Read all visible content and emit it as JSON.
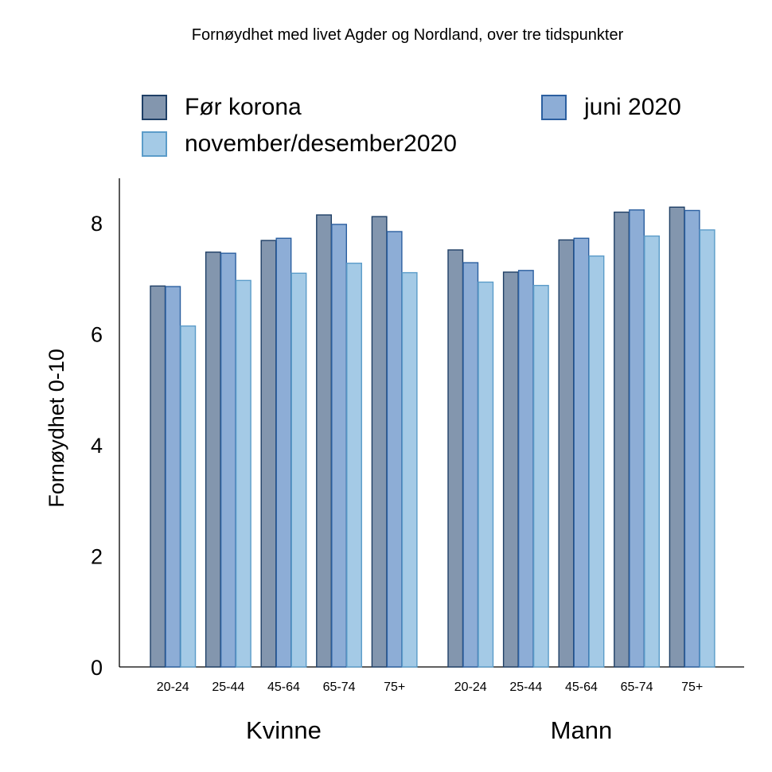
{
  "chart_data": {
    "type": "bar",
    "title": "Fornøydhet med livet Agder og Nordland, over tre tidspunkter",
    "ylabel": "Fornøydhet 0-10",
    "xlabel": "",
    "ylim": [
      0,
      8.8
    ],
    "yticks": [
      0,
      2,
      4,
      6,
      8
    ],
    "groups": [
      {
        "label": "Kvinne",
        "categories": [
          "20-24",
          "25-44",
          "45-64",
          "65-74",
          "75+"
        ]
      },
      {
        "label": "Mann",
        "categories": [
          "20-24",
          "25-44",
          "45-64",
          "65-74",
          "75+"
        ]
      }
    ],
    "series": [
      {
        "name": "Før korona",
        "color": "#8396ae",
        "edge": "#1f3f66",
        "values": [
          6.86,
          7.47,
          7.68,
          8.14,
          8.11,
          7.51,
          7.11,
          7.69,
          8.19,
          8.28
        ]
      },
      {
        "name": "juni 2020",
        "color": "#8dadd6",
        "edge": "#2b5fa0",
        "values": [
          6.85,
          7.45,
          7.72,
          7.97,
          7.84,
          7.28,
          7.14,
          7.72,
          8.23,
          8.22
        ]
      },
      {
        "name": "november/desember2020",
        "color": "#a4cae6",
        "edge": "#5b9cc9",
        "values": [
          6.14,
          6.96,
          7.09,
          7.27,
          7.1,
          6.93,
          6.87,
          7.4,
          7.76,
          7.87
        ]
      }
    ],
    "grid": false,
    "legend": "top"
  }
}
